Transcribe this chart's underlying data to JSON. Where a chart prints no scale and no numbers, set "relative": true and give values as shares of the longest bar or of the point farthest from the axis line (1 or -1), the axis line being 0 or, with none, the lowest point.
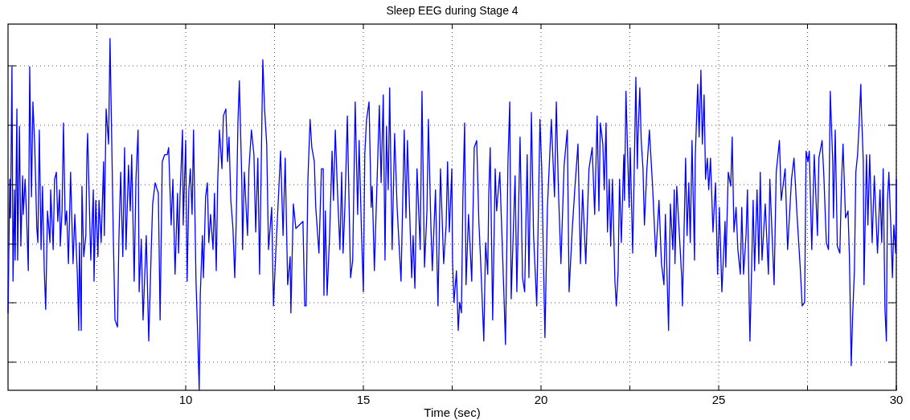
{
  "chart_data": {
    "type": "line",
    "title": "Sleep EEG during Stage 4",
    "xlabel": "Time (sec)",
    "relative": true,
    "grid": true,
    "xlim": [
      5,
      30
    ],
    "xticks": [
      {
        "value": 7.5,
        "label": null
      },
      10,
      {
        "value": 12.5,
        "label": null
      },
      15,
      {
        "value": 17.5,
        "label": null
      },
      20,
      {
        "value": 22.5,
        "label": null
      },
      25,
      {
        "value": 27.5,
        "label": null
      },
      30
    ],
    "x": [
      5.0,
      5.05,
      5.07,
      5.11,
      5.14,
      5.18,
      5.2,
      5.25,
      5.27,
      5.32,
      5.36,
      5.41,
      5.43,
      5.48,
      5.52,
      5.57,
      5.61,
      5.66,
      5.7,
      5.75,
      5.81,
      5.84,
      5.88,
      5.93,
      5.97,
      6.02,
      6.06,
      6.11,
      6.18,
      6.2,
      6.27,
      6.31,
      6.36,
      6.4,
      6.45,
      6.47,
      6.52,
      6.56,
      6.61,
      6.65,
      6.7,
      6.76,
      6.83,
      6.88,
      6.95,
      6.99,
      7.01,
      7.06,
      7.08,
      7.13,
      7.19,
      7.22,
      7.24,
      7.31,
      7.33,
      7.4,
      7.42,
      7.47,
      7.53,
      7.56,
      7.62,
      7.69,
      7.71,
      7.76,
      7.83,
      7.87,
      7.92,
      7.96,
      8.01,
      8.08,
      8.12,
      8.17,
      8.23,
      8.28,
      8.32,
      8.39,
      8.44,
      8.48,
      8.55,
      8.6,
      8.66,
      8.69,
      8.75,
      8.8,
      8.89,
      8.96,
      9.03,
      9.07,
      9.14,
      9.23,
      9.28,
      9.34,
      9.41,
      9.48,
      9.52,
      9.59,
      9.64,
      9.7,
      9.77,
      9.8,
      9.84,
      9.91,
      9.93,
      10.0,
      10.04,
      10.09,
      10.13,
      10.18,
      10.22,
      10.29,
      10.34,
      10.38,
      10.41,
      10.47,
      10.5,
      10.56,
      10.61,
      10.65,
      10.7,
      10.77,
      10.81,
      10.86,
      10.9,
      10.95,
      11.02,
      11.06,
      11.13,
      11.18,
      11.22,
      11.27,
      11.33,
      11.38,
      11.42,
      11.47,
      11.51,
      11.58,
      11.6,
      11.65,
      11.74,
      11.78,
      11.85,
      11.92,
      11.97,
      12.03,
      12.08,
      12.17,
      12.22,
      12.28,
      12.33,
      12.42,
      12.47,
      12.53,
      12.62,
      12.67,
      12.74,
      12.8,
      12.87,
      12.94,
      12.96,
      13.03,
      13.1,
      13.3,
      13.35,
      13.39,
      13.44,
      13.5,
      13.55,
      13.62,
      13.66,
      13.75,
      13.82,
      13.87,
      13.89,
      13.93,
      13.98,
      14.05,
      14.12,
      14.16,
      14.21,
      14.27,
      14.34,
      14.39,
      14.43,
      14.48,
      14.55,
      14.57,
      14.64,
      14.7,
      14.77,
      14.84,
      14.88,
      14.95,
      15.0,
      15.04,
      15.09,
      15.16,
      15.22,
      15.25,
      15.31,
      15.36,
      15.45,
      15.5,
      15.56,
      15.61,
      15.65,
      15.7,
      15.74,
      15.81,
      15.88,
      15.95,
      16.06,
      16.15,
      16.2,
      16.24,
      16.36,
      16.4,
      16.45,
      16.51,
      16.6,
      16.65,
      16.72,
      16.79,
      16.83,
      16.9,
      16.94,
      17.03,
      17.1,
      17.17,
      17.26,
      17.33,
      17.37,
      17.42,
      17.49,
      17.51,
      17.55,
      17.62,
      17.67,
      17.71,
      17.76,
      17.8,
      17.85,
      17.89,
      17.96,
      18.05,
      18.12,
      18.19,
      18.25,
      18.3,
      18.39,
      18.44,
      18.5,
      18.53,
      18.57,
      18.64,
      18.71,
      18.75,
      18.84,
      18.96,
      19.0,
      19.07,
      19.12,
      19.16,
      19.27,
      19.32,
      19.41,
      19.48,
      19.54,
      19.61,
      19.66,
      19.73,
      19.79,
      19.88,
      19.97,
      20.02,
      20.11,
      20.18,
      20.29,
      20.38,
      20.43,
      20.49,
      20.56,
      20.65,
      20.74,
      20.79,
      20.88,
      20.95,
      21.04,
      21.11,
      21.17,
      21.26,
      21.35,
      21.44,
      21.51,
      21.58,
      21.63,
      21.67,
      21.74,
      21.78,
      21.83,
      21.87,
      21.92,
      21.96,
      22.01,
      22.08,
      22.12,
      22.17,
      22.21,
      22.26,
      22.33,
      22.35,
      22.39,
      22.48,
      22.51,
      22.58,
      22.67,
      22.71,
      22.73,
      22.78,
      22.82,
      22.87,
      22.91,
      22.98,
      23.05,
      23.14,
      23.23,
      23.32,
      23.39,
      23.46,
      23.5,
      23.59,
      23.64,
      23.71,
      23.75,
      23.77,
      23.82,
      23.89,
      23.96,
      23.98,
      24.07,
      24.11,
      24.16,
      24.2,
      24.25,
      24.32,
      24.34,
      24.41,
      24.45,
      24.5,
      24.54,
      24.59,
      24.63,
      24.68,
      24.72,
      24.77,
      24.84,
      24.91,
      24.97,
      25.02,
      25.09,
      25.18,
      25.2,
      25.27,
      25.34,
      25.38,
      25.43,
      25.49,
      25.54,
      25.61,
      25.65,
      25.7,
      25.77,
      25.81,
      25.86,
      25.88,
      25.97,
      26.01,
      26.08,
      26.13,
      26.17,
      26.22,
      26.31,
      26.4,
      26.44,
      26.56,
      26.62,
      26.71,
      26.76,
      26.87,
      26.94,
      27.05,
      27.12,
      27.21,
      27.3,
      27.35,
      27.42,
      27.46,
      27.51,
      27.55,
      27.62,
      27.69,
      27.78,
      27.82,
      27.91,
      27.96,
      28.03,
      28.09,
      28.14,
      28.21,
      28.23,
      28.28,
      28.34,
      28.41,
      28.46,
      28.5,
      28.57,
      28.64,
      28.68,
      28.73,
      28.77,
      28.82,
      28.86,
      28.91,
      28.95,
      29.0,
      29.02,
      29.07,
      29.09,
      29.16,
      29.2,
      29.25,
      29.32,
      29.38,
      29.47,
      29.54,
      29.59,
      29.63,
      29.68,
      29.72,
      29.75,
      29.79,
      29.84,
      29.89,
      29.93,
      29.98,
      30.0
    ],
    "series": [
      {
        "color": "#0000ff",
        "values": [
          0.22,
          0.6,
          0.49,
          0.92,
          0.31,
          0.57,
          0.37,
          0.8,
          0.37,
          0.75,
          0.41,
          0.61,
          0.5,
          0.6,
          0.5,
          0.34,
          0.92,
          0.55,
          0.82,
          0.7,
          0.46,
          0.42,
          0.74,
          0.4,
          0.58,
          0.34,
          0.23,
          0.51,
          0.42,
          0.57,
          0.4,
          0.6,
          0.62,
          0.48,
          0.57,
          0.41,
          0.51,
          0.76,
          0.47,
          0.51,
          0.36,
          0.62,
          0.36,
          0.5,
          0.33,
          0.17,
          0.42,
          0.17,
          0.58,
          0.38,
          0.44,
          0.67,
          0.73,
          0.44,
          0.37,
          0.57,
          0.31,
          0.54,
          0.38,
          0.54,
          0.42,
          0.65,
          0.44,
          0.8,
          0.7,
          1,
          0.7,
          0.45,
          0.2,
          0.18,
          0.43,
          0.62,
          0.38,
          0.69,
          0.4,
          0.64,
          0.51,
          0.67,
          0.31,
          0.6,
          0.74,
          0.28,
          0.43,
          0.2,
          0.44,
          0.14,
          0.4,
          0.53,
          0.59,
          0.56,
          0.2,
          0.65,
          0.67,
          0.67,
          0.69,
          0.47,
          0.6,
          0.33,
          0.56,
          0.39,
          0.55,
          0.74,
          0.47,
          0.71,
          0.31,
          0.57,
          0.63,
          0.5,
          0.74,
          0.31,
          0.15,
          0,
          0.27,
          0.44,
          0.32,
          0.55,
          0.59,
          0.42,
          0.5,
          0.4,
          0.56,
          0.34,
          0.59,
          0.74,
          0.63,
          0.78,
          0.8,
          0.65,
          0.72,
          0.54,
          0.46,
          0.32,
          0.47,
          0.76,
          0.88,
          0.59,
          0.4,
          0.62,
          0.44,
          0.63,
          0.74,
          0.67,
          0.45,
          0.66,
          0.33,
          0.94,
          0.8,
          0.7,
          0.4,
          0.52,
          0.24,
          0.38,
          0.57,
          0.68,
          0.44,
          0.66,
          0.3,
          0.38,
          0.22,
          0.53,
          0.46,
          0.48,
          0.24,
          0.24,
          0.6,
          0.77,
          0.69,
          0.65,
          0.52,
          0.39,
          0.63,
          0.63,
          0.27,
          0.51,
          0.27,
          0.44,
          0.68,
          0.54,
          0.74,
          0.57,
          0.4,
          0.62,
          0.39,
          0.52,
          0.78,
          0.67,
          0.32,
          0.37,
          0.82,
          0.5,
          0.71,
          0.44,
          0.28,
          0.67,
          0.77,
          0.82,
          0.52,
          0.58,
          0.34,
          0.51,
          0.81,
          0.59,
          0.84,
          0.37,
          0.75,
          0.57,
          0.86,
          0.4,
          0.73,
          0.52,
          0.31,
          0.74,
          0.49,
          0.71,
          0.32,
          0.44,
          0.29,
          0.63,
          0.4,
          0.85,
          0.35,
          0.51,
          0.77,
          0.47,
          0.34,
          0.57,
          0.24,
          0.63,
          0.36,
          0.47,
          0.65,
          0.45,
          0.63,
          0.37,
          0.25,
          0.34,
          0.17,
          0.25,
          0.22,
          0.54,
          0.76,
          0.3,
          0.5,
          0.31,
          0.69,
          0.71,
          0.48,
          0.37,
          0.14,
          0.42,
          0.33,
          0.56,
          0.69,
          0.2,
          0.63,
          0.51,
          0.62,
          0.26,
          0.13,
          0.65,
          0.82,
          0.26,
          0.61,
          0.28,
          0.72,
          0.32,
          0.28,
          0.67,
          0.32,
          0.79,
          0.44,
          0.24,
          0.77,
          0.63,
          0.15,
          0.52,
          0.77,
          0.55,
          0.82,
          0.57,
          0.36,
          0.64,
          0.74,
          0.28,
          0.46,
          0.57,
          0.7,
          0.36,
          0.57,
          0.36,
          0.63,
          0.69,
          0.5,
          0.78,
          0.51,
          0.76,
          0.7,
          0.57,
          0.76,
          0.45,
          0.6,
          0.41,
          0.6,
          0.31,
          0.24,
          0.34,
          0.6,
          0.42,
          0.67,
          0.54,
          0.85,
          0.52,
          0.69,
          0.39,
          0.89,
          0.63,
          0.72,
          0.86,
          0.71,
          0.63,
          0.47,
          0.63,
          0.74,
          0.58,
          0.38,
          0.54,
          0.36,
          0.3,
          0.5,
          0.17,
          0.53,
          0.4,
          0.57,
          0.36,
          0.58,
          0.45,
          0.32,
          0.24,
          0.66,
          0.44,
          0.59,
          0.42,
          0.71,
          0.37,
          0.66,
          0.87,
          0.72,
          0.91,
          0.7,
          0.84,
          0.6,
          0.66,
          0.57,
          0.66,
          0.45,
          0.59,
          0.33,
          0.52,
          0.28,
          0.48,
          0.35,
          0.62,
          0.58,
          0.72,
          0.45,
          0.52,
          0.4,
          0.33,
          0.52,
          0.33,
          0.44,
          0.57,
          0.24,
          0.14,
          0.54,
          0.34,
          0.57,
          0.36,
          0.62,
          0.37,
          0.53,
          0.33,
          0.6,
          0.3,
          0.62,
          0.71,
          0.54,
          0.63,
          0.4,
          0.6,
          0.66,
          0.49,
          0.34,
          0.24,
          0.25,
          0.68,
          0.65,
          0.68,
          0.4,
          0.67,
          0.44,
          0.66,
          0.71,
          0.61,
          0.42,
          0.4,
          0.85,
          0.65,
          0.49,
          0.74,
          0.41,
          0.39,
          0.6,
          0.7,
          0.49,
          0.51,
          0.38,
          0.07,
          0.21,
          0.34,
          0.62,
          0.67,
          0.75,
          0.87,
          0.79,
          0.65,
          0.3,
          0.67,
          0.47,
          0.67,
          0.42,
          0.61,
          0.39,
          0.57,
          0.42,
          0.63,
          0.23,
          0.14,
          0.54,
          0.62,
          0.48,
          0.32,
          0.47,
          0.39,
          0.6
        ]
      }
    ]
  }
}
